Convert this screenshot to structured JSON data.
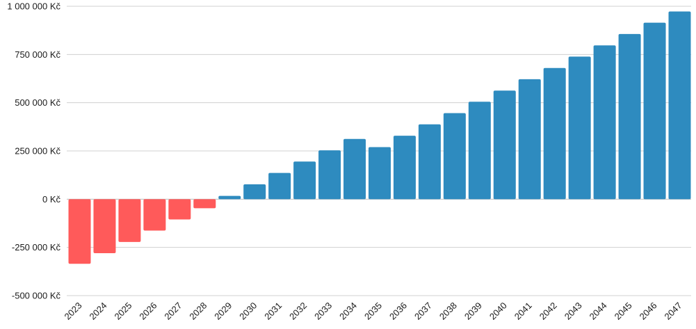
{
  "chart_data": {
    "type": "bar",
    "title": "",
    "xlabel": "",
    "ylabel": "",
    "categories": [
      "2023",
      "2024",
      "2025",
      "2026",
      "2027",
      "2028",
      "2029",
      "2030",
      "2031",
      "2032",
      "2033",
      "2034",
      "2035",
      "2036",
      "2037",
      "2038",
      "2039",
      "2040",
      "2041",
      "2042",
      "2043",
      "2044",
      "2045",
      "2046",
      "2047"
    ],
    "values": [
      -335000,
      -280000,
      -222000,
      -163000,
      -105000,
      -47000,
      17000,
      77000,
      136000,
      195000,
      253000,
      312000,
      270000,
      329000,
      388000,
      446000,
      505000,
      563000,
      622000,
      680000,
      739000,
      797000,
      856000,
      915000,
      973000
    ],
    "ylim": [
      -500000,
      1000000
    ],
    "yticks": [
      1000000,
      750000,
      500000,
      250000,
      0,
      -250000,
      -500000
    ],
    "ytick_labels": [
      "1 000 000 Kč",
      "750 000 Kč",
      "500 000 Kč",
      "250 000 Kč",
      "0 Kč",
      "-250 000 Kč",
      "-500 000 Kč"
    ],
    "grid": true,
    "colors": {
      "positive": "#2e8bbf",
      "negative": "#ff5a5a"
    }
  }
}
